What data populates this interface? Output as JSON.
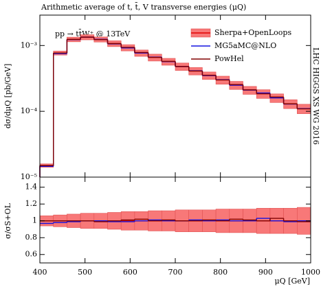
{
  "chart_data": [
    {
      "type": "histogram",
      "title": "Arithmetic average of t, t̄, V transverse energies (μQ)",
      "annotation": "pp → tt̄W⁺ @ 13TeV",
      "side_label": "LHC HIGGS XS WG 2016",
      "y_label": "dσ/dμQ [pb/GeV]",
      "log_y": true,
      "legend": "upper right",
      "bins": [
        400,
        430,
        460,
        490,
        520,
        550,
        580,
        610,
        640,
        670,
        700,
        730,
        760,
        790,
        820,
        850,
        880,
        910,
        940,
        970,
        1000
      ],
      "xlim": [
        400,
        1000
      ],
      "xticks": [
        400,
        500,
        600,
        700,
        800,
        900,
        1000
      ],
      "ylim": [
        1e-05,
        0.0029
      ],
      "yticks": [
        {
          "value": 1e-05,
          "label": "10⁻⁵"
        },
        {
          "value": 0.0001,
          "label": "10⁻⁴"
        },
        {
          "value": 0.001,
          "label": "10⁻³"
        }
      ],
      "series": [
        {
          "name": "Sherpa+OpenLoops",
          "color": "#e00000",
          "band_color": "#f87878",
          "values": [
            1.5e-05,
            0.00077,
            0.00124,
            0.00134,
            0.00124,
            0.00107,
            0.00093,
            0.00077,
            0.00066,
            0.00057,
            0.00048,
            0.00041,
            0.00035,
            0.0003,
            0.00025,
            0.00021,
            0.000185,
            0.00016,
            0.00013,
            0.00011
          ],
          "band_low": [
            1.41e-05,
            0.000716,
            0.00114,
            0.00122,
            0.00113,
            0.000963,
            0.000828,
            0.000685,
            0.000581,
            0.000502,
            0.000418,
            0.000357,
            0.000305,
            0.000258,
            0.000215,
            0.000181,
            0.000157,
            0.000136,
            0.00011,
            9.2e-05
          ],
          "band_high": [
            1.59e-05,
            0.000824,
            0.00134,
            0.00146,
            0.00135,
            0.00118,
            0.00103,
            0.000855,
            0.000739,
            0.000638,
            0.000542,
            0.000463,
            0.000396,
            0.000342,
            0.000285,
            0.000239,
            0.000213,
            0.000184,
            0.00015,
            0.000128
          ]
        },
        {
          "name": "MG5aMC@NLO",
          "color": "#1010e0",
          "values": [
            1.46e-05,
            0.000755,
            0.00123,
            0.00134,
            0.00124,
            0.00106,
            0.00092,
            0.00077,
            0.000667,
            0.00057,
            0.00048,
            0.000414,
            0.00035,
            0.000303,
            0.00025,
            0.00021,
            0.00019,
            0.00016,
            0.000129,
            0.00011
          ]
        },
        {
          "name": "PowHel",
          "color": "#800000",
          "values": [
            1.5e-05,
            0.00077,
            0.00124,
            0.00134,
            0.00123,
            0.00107,
            0.00094,
            0.000785,
            0.00066,
            0.000576,
            0.00048,
            0.00041,
            0.000354,
            0.0003,
            0.000255,
            0.000212,
            0.000185,
            0.000165,
            0.00013,
            0.000109
          ]
        }
      ]
    },
    {
      "type": "histogram",
      "y_label": "σ/σS+OL",
      "x_label": "μQ [GeV]",
      "bins": [
        400,
        430,
        460,
        490,
        520,
        550,
        580,
        610,
        640,
        670,
        700,
        730,
        760,
        790,
        820,
        850,
        880,
        910,
        940,
        970,
        1000
      ],
      "xlim": [
        400,
        1000
      ],
      "xticks": [
        400,
        500,
        600,
        700,
        800,
        900,
        1000
      ],
      "ylim": [
        0.5,
        1.52
      ],
      "yticks": [
        0.6,
        0.8,
        1,
        1.2,
        1.4
      ],
      "series": [
        {
          "name": "Sherpa+OpenLoops",
          "color": "#e00000",
          "band_color": "#f87878",
          "values": [
            1,
            1,
            1,
            1,
            1,
            1,
            1,
            1,
            1,
            1,
            1,
            1,
            1,
            1,
            1,
            1,
            1,
            1,
            1,
            1
          ],
          "band_low": [
            0.94,
            0.93,
            0.92,
            0.91,
            0.91,
            0.9,
            0.89,
            0.89,
            0.88,
            0.88,
            0.87,
            0.87,
            0.87,
            0.86,
            0.86,
            0.86,
            0.85,
            0.85,
            0.85,
            0.84
          ],
          "band_high": [
            1.06,
            1.07,
            1.08,
            1.09,
            1.09,
            1.1,
            1.11,
            1.11,
            1.12,
            1.12,
            1.13,
            1.13,
            1.13,
            1.14,
            1.14,
            1.14,
            1.15,
            1.15,
            1.15,
            1.16
          ]
        },
        {
          "name": "MG5aMC@NLO",
          "color": "#1010e0",
          "values": [
            0.97,
            0.98,
            0.99,
            1,
            1,
            0.99,
            0.99,
            1,
            1.01,
            1,
            1,
            1.01,
            1,
            1.01,
            1,
            1,
            1.03,
            1,
            0.99,
            1
          ]
        },
        {
          "name": "PowHel",
          "color": "#800000",
          "values": [
            1,
            1,
            1,
            1,
            0.99,
            1,
            1.01,
            1.02,
            1,
            1.01,
            1,
            1,
            1.01,
            1,
            1.02,
            1.01,
            1,
            1.03,
            1,
            0.99
          ]
        }
      ]
    }
  ]
}
